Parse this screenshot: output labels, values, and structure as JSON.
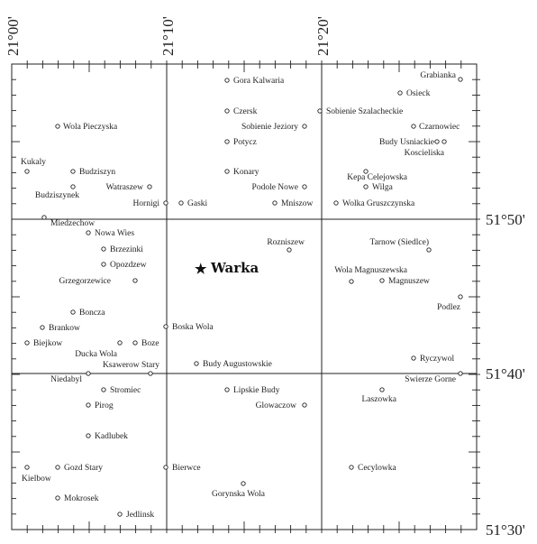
{
  "map": {
    "longitude_labels": [
      "21°00'",
      "21°10'",
      "21°20'"
    ],
    "latitude_labels": [
      "51°50'",
      "51°40'",
      "51°30'"
    ],
    "main_town": {
      "name": "Warka",
      "symbol": "★"
    },
    "places": [
      "Gora Kalwaria",
      "Grabianka",
      "Osieck",
      "Wola Pieczyska",
      "Czersk",
      "Sobienie Szalacheckie",
      "Sobienie Jeziory",
      "Czarnowiec",
      "Potycz",
      "Budy Usniackie",
      "Koscieliska",
      "Kukaly",
      "Budziszyn",
      "Konary",
      "Kepa Celejowska",
      "Watraszew",
      "Podole Nowe",
      "Wilga",
      "Budziszynek",
      "Hornigi",
      "Gaski",
      "Mniszow",
      "Wolka Gruszczynska",
      "Miedzechow",
      "Nowa Wies",
      "Rozniszew",
      "Tarnow (Siedlce)",
      "Brzezinki",
      "Opozdzew",
      "Wola Magnuszewska",
      "Grzegorzewice",
      "Magnuszew",
      "Podlez",
      "Boncza",
      "Brankow",
      "Boska Wola",
      "Biejkow",
      "Boze",
      "Ducka Wola",
      "Ryczywol",
      "Ksawerow Stary",
      "Budy Augustowskie",
      "Niedabyl",
      "Swierze Gorne",
      "Stromiec",
      "Lipskie Budy",
      "Laszowka",
      "Pirog",
      "Glowaczow",
      "Kadlubek",
      "Gozd Stary",
      "Bierwce",
      "Cecylowka",
      "Kielbow",
      "Gorynska Wola",
      "Mokrosek",
      "Jedlinsk"
    ]
  }
}
